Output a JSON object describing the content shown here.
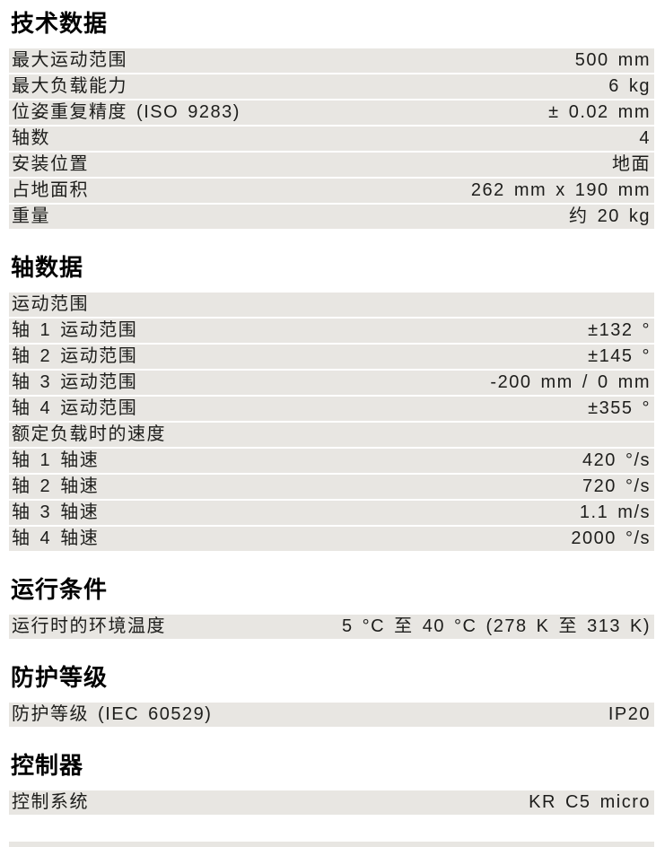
{
  "colors": {
    "row_background": "#e8e6e2",
    "text": "#1d1d1b",
    "title": "#000000",
    "page_background": "#ffffff"
  },
  "sections": [
    {
      "title": "技术数据",
      "rows": [
        {
          "label": "最大运动范围",
          "value": "500 mm"
        },
        {
          "label": "最大负载能力",
          "value": "6 kg"
        },
        {
          "label": "位姿重复精度 (ISO 9283)",
          "value": "± 0.02 mm"
        },
        {
          "label": "轴数",
          "value": "4"
        },
        {
          "label": "安装位置",
          "value": "地面"
        },
        {
          "label": "占地面积",
          "value": "262 mm x 190 mm"
        },
        {
          "label": "重量",
          "value": "约 20 kg"
        }
      ]
    },
    {
      "title": "轴数据",
      "rows": [
        {
          "label": "运动范围",
          "value": ""
        },
        {
          "label": "轴 1 运动范围",
          "value": "±132 °"
        },
        {
          "label": "轴 2 运动范围",
          "value": "±145 °"
        },
        {
          "label": "轴 3 运动范围",
          "value": "-200 mm / 0 mm"
        },
        {
          "label": "轴 4 运动范围",
          "value": "±355 °"
        },
        {
          "label": "额定负载时的速度",
          "value": ""
        },
        {
          "label": "轴 1 轴速",
          "value": "420 °/s"
        },
        {
          "label": "轴 2 轴速",
          "value": "720 °/s"
        },
        {
          "label": "轴 3 轴速",
          "value": "1.1 m/s"
        },
        {
          "label": "轴 4 轴速",
          "value": "2000 °/s"
        }
      ]
    },
    {
      "title": "运行条件",
      "rows": [
        {
          "label": "运行时的环境温度",
          "value": "5 °C 至 40 °C (278 K 至 313 K)"
        }
      ]
    },
    {
      "title": "防护等级",
      "rows": [
        {
          "label": "防护等级 (IEC 60529)",
          "value": "IP20"
        }
      ]
    },
    {
      "title": "控制器",
      "rows": [
        {
          "label": "控制系统",
          "value": "KR C5 micro"
        }
      ]
    }
  ]
}
